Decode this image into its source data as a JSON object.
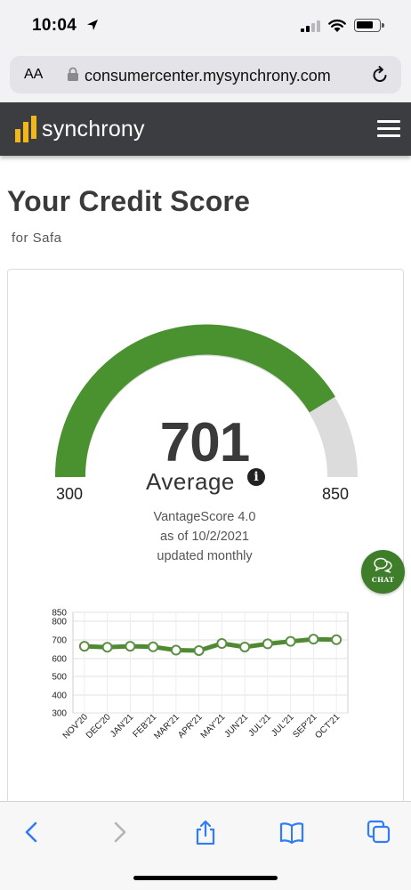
{
  "status_bar": {
    "time": "10:04"
  },
  "browser": {
    "text_size_label": "AA",
    "url": "consumercenter.mysynchrony.com"
  },
  "header": {
    "brand": "synchrony"
  },
  "page": {
    "title": "Your Credit Score",
    "subtitle": "for Safa"
  },
  "score": {
    "value": "701",
    "rating": "Average",
    "min": "300",
    "max": "850",
    "model": "VantageScore 4.0",
    "as_of": "as of 10/2/2021",
    "frequency": "updated monthly"
  },
  "chat": {
    "label": "CHAT"
  },
  "colors": {
    "accent": "#4a9130",
    "gauge_empty": "#dcdcdc",
    "line": "#4f8a33",
    "header_bg": "#3c3d41",
    "logo_yellow": "#f3b71b",
    "ios_blue": "#2f7cf6"
  },
  "chart_data": {
    "type": "line",
    "categories": [
      "NOV'20",
      "DEC'20",
      "JAN'21",
      "FEB'21",
      "MAR'21",
      "APR'21",
      "MAY'21",
      "JUN'21",
      "JUL'21",
      "JUL'21",
      "SEP'21",
      "OCT'21"
    ],
    "series": [
      {
        "values": [
          666,
          661,
          666,
          663,
          645,
          643,
          681,
          662,
          679,
          692,
          704,
          701
        ]
      }
    ],
    "yticks": [
      "850",
      "800",
      "700",
      "600",
      "500",
      "400",
      "300"
    ],
    "ylim": [
      300,
      850
    ],
    "grid": true
  },
  "icons": {
    "status": [
      "location-arrow-icon",
      "cellular-signal-icon",
      "wifi-icon",
      "battery-icon"
    ],
    "browser": [
      "lock-icon",
      "reload-icon"
    ],
    "toolbar": [
      "back-icon",
      "forward-icon",
      "share-icon",
      "bookmarks-icon",
      "tabs-icon"
    ]
  }
}
